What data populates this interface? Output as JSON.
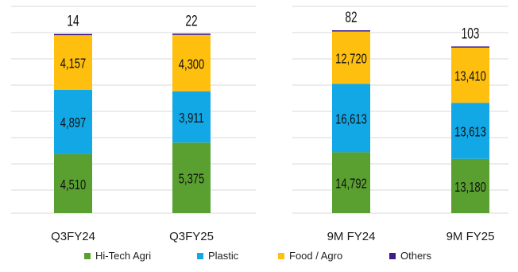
{
  "chart_data": [
    {
      "type": "bar",
      "stacked": true,
      "categories": [
        "Q3FY24",
        "Q3FY25"
      ],
      "series": [
        {
          "name": "Hi-Tech Agri",
          "values": [
            4510,
            5375
          ],
          "labels": [
            "4,510",
            "5,375"
          ]
        },
        {
          "name": "Plastic",
          "values": [
            4897,
            3911
          ],
          "labels": [
            "4,897",
            "3,911"
          ]
        },
        {
          "name": "Food / Agro",
          "values": [
            4157,
            4300
          ],
          "labels": [
            "4,157",
            "4,300"
          ]
        },
        {
          "name": "Others",
          "values": [
            14,
            22
          ],
          "labels": [
            "14",
            "22"
          ]
        }
      ],
      "ylim": [
        0,
        16000
      ],
      "grid": true
    },
    {
      "type": "bar",
      "stacked": true,
      "categories": [
        "9M FY24",
        "9M FY25"
      ],
      "series": [
        {
          "name": "Hi-Tech Agri",
          "values": [
            14792,
            13180
          ],
          "labels": [
            "14,792",
            "13,180"
          ]
        },
        {
          "name": "Plastic",
          "values": [
            16613,
            13613
          ],
          "labels": [
            "16,613",
            "13,613"
          ]
        },
        {
          "name": "Food / Agro",
          "values": [
            12720,
            13410
          ],
          "labels": [
            "12,720",
            "13,410"
          ]
        },
        {
          "name": "Others",
          "values": [
            82,
            103
          ],
          "labels": [
            "82",
            "103"
          ]
        }
      ],
      "ylim": [
        0,
        51000
      ],
      "grid": true
    }
  ],
  "colors": {
    "Hi-Tech Agri": "#5aa030",
    "Plastic": "#12a8e6",
    "Food / Agro": "#ffbf0f",
    "Others": "#3e1a8a",
    "grid": "#d9d9d9",
    "label": "#111111"
  },
  "legend": {
    "position": "bottom",
    "items": [
      {
        "label": "Hi-Tech Agri",
        "color": "#5aa030"
      },
      {
        "label": "Plastic",
        "color": "#12a8e6"
      },
      {
        "label": "Food / Agro",
        "color": "#ffbf0f"
      },
      {
        "label": "Others",
        "color": "#3e1a8a"
      }
    ]
  }
}
